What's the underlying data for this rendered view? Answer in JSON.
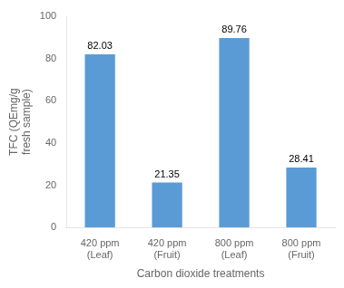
{
  "chart_data": {
    "type": "bar",
    "categories": [
      "420 ppm\n(Leaf)",
      "420 ppm\n(Fruit)",
      "800 ppm\n(Leaf)",
      "800 ppm\n(Fruit)"
    ],
    "values": [
      82.03,
      21.35,
      89.76,
      28.41
    ],
    "color": "#5b9bd5",
    "xlabel": "Carbon dioxide treatments",
    "ylabel": "TFC (QEmg/g\nfresh sample)",
    "ylim": [
      0,
      100
    ],
    "yticks": [
      0,
      20,
      40,
      60,
      80,
      100
    ],
    "grid": false,
    "data_labels": true
  }
}
